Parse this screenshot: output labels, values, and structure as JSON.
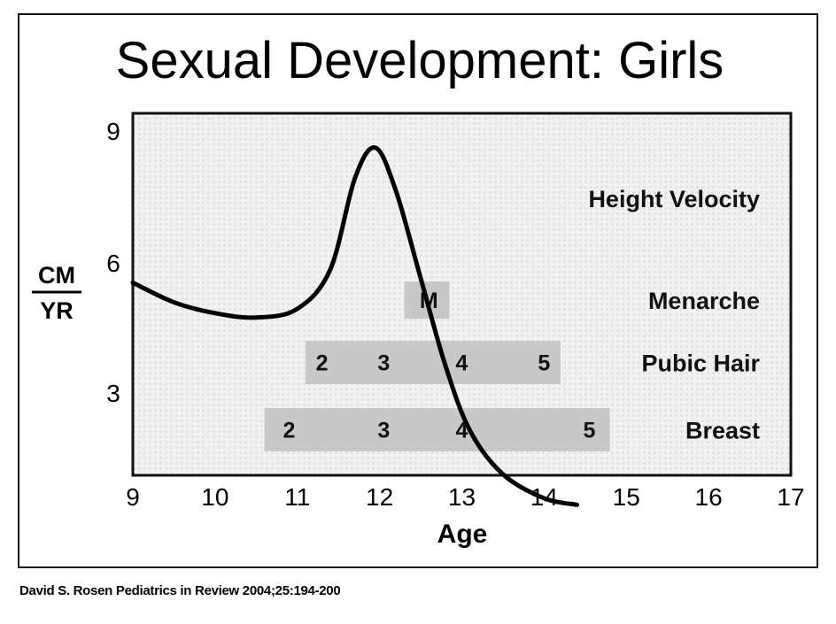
{
  "title": "Sexual Development: Girls",
  "citation": "David S. Rosen Pediatrics in Review 2004;25:194-200",
  "chart_data": {
    "type": "line",
    "xlabel": "Age",
    "ylabel_numerator": "CM",
    "ylabel_denominator": "YR",
    "xlim": [
      9,
      17
    ],
    "ylim": [
      0,
      9.5
    ],
    "x_ticks": [
      "9",
      "10",
      "11",
      "12",
      "13",
      "14",
      "15",
      "16",
      "17"
    ],
    "y_ticks": [
      "3",
      "6",
      "9"
    ],
    "series": [
      {
        "name": "Height Velocity",
        "x": [
          9.0,
          9.5,
          10.0,
          10.5,
          11.0,
          11.4,
          11.7,
          11.95,
          12.2,
          12.5,
          12.8,
          13.1,
          13.5,
          14.0,
          14.4
        ],
        "y": [
          5.5,
          5.05,
          4.8,
          4.7,
          4.9,
          5.8,
          7.9,
          8.6,
          7.6,
          5.6,
          3.6,
          2.1,
          1.1,
          0.55,
          0.4
        ]
      }
    ],
    "bars": [
      {
        "name": "Menarche",
        "start": 12.3,
        "end": 12.85,
        "stages": [
          {
            "label": "M",
            "x": 12.6
          }
        ]
      },
      {
        "name": "Pubic Hair",
        "start": 11.1,
        "end": 14.2,
        "stages": [
          {
            "label": "2",
            "x": 11.3
          },
          {
            "label": "3",
            "x": 12.05
          },
          {
            "label": "4",
            "x": 13.0
          },
          {
            "label": "5",
            "x": 14.0
          }
        ]
      },
      {
        "name": "Breast",
        "start": 10.6,
        "end": 14.8,
        "stages": [
          {
            "label": "2",
            "x": 10.9
          },
          {
            "label": "3",
            "x": 12.05
          },
          {
            "label": "4",
            "x": 13.0
          },
          {
            "label": "5",
            "x": 14.55
          }
        ]
      }
    ],
    "grid": false,
    "colors": {
      "curve": "#000000",
      "bar": "#c8c8c8",
      "plot_bg": "#efefef",
      "dot": "#d2d2d2"
    }
  }
}
